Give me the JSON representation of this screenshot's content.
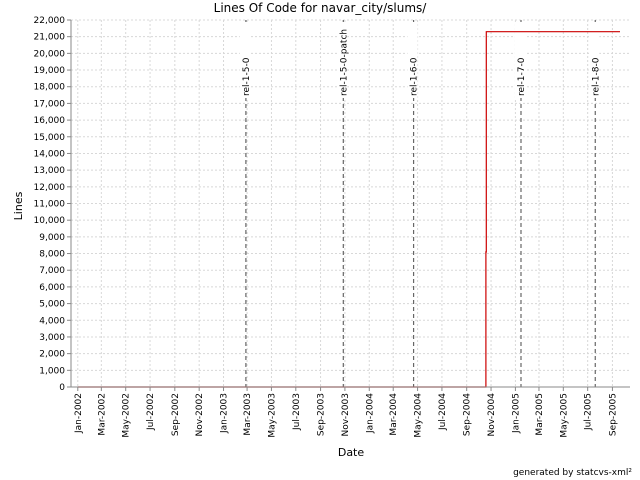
{
  "chart_data": {
    "type": "line",
    "title": "Lines Of Code for navar_city/slums/",
    "xlabel": "Date",
    "ylabel": "Lines",
    "ylim": [
      0,
      22000
    ],
    "yticks": [
      0,
      1000,
      2000,
      3000,
      4000,
      5000,
      6000,
      7000,
      8000,
      9000,
      10000,
      11000,
      12000,
      13000,
      14000,
      15000,
      16000,
      17000,
      18000,
      19000,
      20000,
      21000,
      22000
    ],
    "ytick_labels": [
      "0",
      "1,000",
      "2,000",
      "3,000",
      "4,000",
      "5,000",
      "6,000",
      "7,000",
      "8,000",
      "9,000",
      "10,000",
      "11,000",
      "12,000",
      "13,000",
      "14,000",
      "15,000",
      "16,000",
      "17,000",
      "18,000",
      "19,000",
      "20,000",
      "21,000",
      "22,000"
    ],
    "xlim": [
      "2001-12-15",
      "2005-10-15"
    ],
    "xticks": [
      "2002-01-01",
      "2002-03-01",
      "2002-05-01",
      "2002-07-01",
      "2002-09-01",
      "2002-11-01",
      "2003-01-01",
      "2003-03-01",
      "2003-05-01",
      "2003-07-01",
      "2003-09-01",
      "2003-11-01",
      "2004-01-01",
      "2004-03-01",
      "2004-05-01",
      "2004-07-01",
      "2004-09-01",
      "2004-11-01",
      "2005-01-01",
      "2005-03-01",
      "2005-05-01",
      "2005-07-01",
      "2005-09-01"
    ],
    "xtick_labels": [
      "Jan-2002",
      "Mar-2002",
      "May-2002",
      "Jul-2002",
      "Sep-2002",
      "Nov-2002",
      "Jan-2003",
      "Mar-2003",
      "May-2003",
      "Jul-2003",
      "Sep-2003",
      "Nov-2003",
      "Jan-2004",
      "Mar-2004",
      "May-2004",
      "Jul-2004",
      "Sep-2004",
      "Nov-2004",
      "Jan-2005",
      "Mar-2005",
      "May-2005",
      "Jul-2005",
      "Sep-2005"
    ],
    "grid": true,
    "series": [
      {
        "color": "#cc0000",
        "points": [
          [
            "2002-01-01",
            0
          ],
          [
            "2004-10-19",
            0
          ],
          [
            "2004-10-19",
            8100
          ],
          [
            "2004-10-20",
            8100
          ],
          [
            "2004-10-20",
            21300
          ],
          [
            "2005-09-20",
            21300
          ]
        ]
      }
    ],
    "markers": [
      {
        "label": "rel-1-5-0",
        "date": "2003-02-26"
      },
      {
        "label": "rel-1-5-0-patch",
        "date": "2003-10-28"
      },
      {
        "label": "rel-1-6-0",
        "date": "2004-04-21"
      },
      {
        "label": "rel-1-7-0",
        "date": "2005-01-15"
      },
      {
        "label": "rel-1-8-0",
        "date": "2005-07-20"
      }
    ],
    "colors": {
      "line": "#cc0000",
      "marker": "#666666",
      "grid": "#d8d8d8"
    }
  },
  "footer": "generated by statcvs-xml²"
}
